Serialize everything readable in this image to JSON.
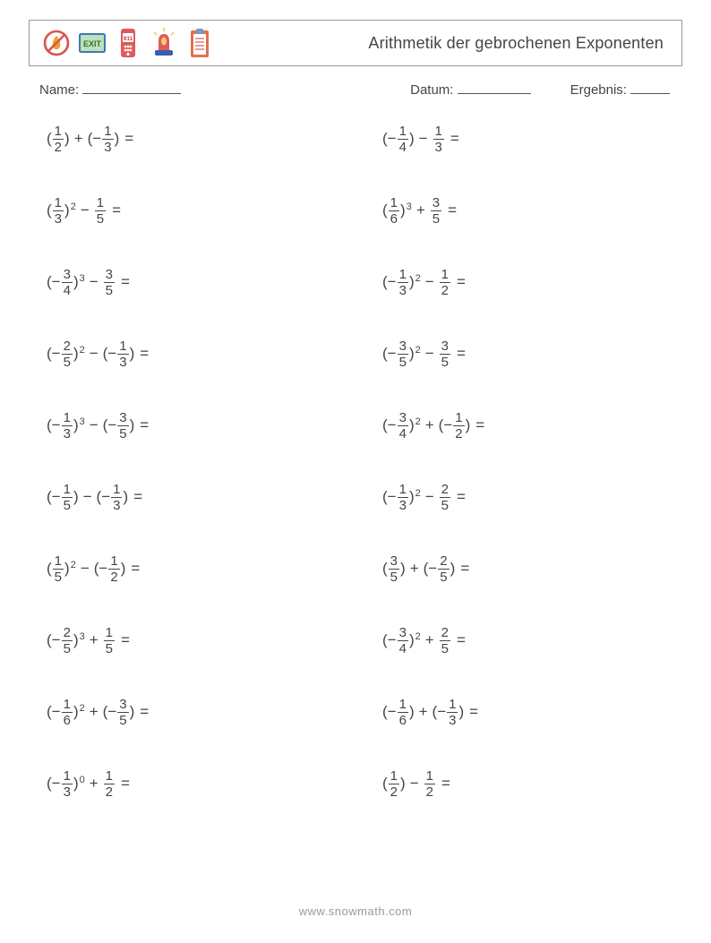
{
  "header": {
    "title": "Arithmetik der gebrochenen Exponenten"
  },
  "info": {
    "name_label": "Name:",
    "date_label": "Datum:",
    "result_label": "Ergebnis:",
    "name_line_w": 110,
    "date_line_w": 82,
    "result_line_w": 44
  },
  "icons": [
    {
      "kind": "no-flame-icon",
      "colors": {
        "ring": "#d9534f",
        "slash": "#d9534f",
        "flame": "#f0a030"
      }
    },
    {
      "kind": "exit-sign-icon",
      "colors": {
        "frame": "#3a7ab8",
        "bg": "#bfe0b8",
        "text": "#2a7a2a"
      }
    },
    {
      "kind": "phone-911-icon",
      "colors": {
        "body": "#e05a5a",
        "screen": "#ffffff",
        "text": "#d04040"
      }
    },
    {
      "kind": "siren-icon",
      "colors": {
        "dome": "#e05a5a",
        "base": "#3760b0",
        "light": "#f8d070"
      }
    },
    {
      "kind": "clipboard-icon",
      "colors": {
        "board": "#e07050",
        "paper": "#ffffff",
        "clip": "#7796c9"
      }
    }
  ],
  "problems": {
    "left": [
      {
        "a": {
          "s": "",
          "n": "1",
          "d": "2",
          "e": ""
        },
        "op": "+",
        "b": {
          "s": "−",
          "n": "1",
          "d": "3",
          "paren": true
        }
      },
      {
        "a": {
          "s": "",
          "n": "1",
          "d": "3",
          "e": "2"
        },
        "op": "−",
        "b": {
          "s": "",
          "n": "1",
          "d": "5",
          "paren": false
        }
      },
      {
        "a": {
          "s": "−",
          "n": "3",
          "d": "4",
          "e": "3"
        },
        "op": "−",
        "b": {
          "s": "",
          "n": "3",
          "d": "5",
          "paren": false
        }
      },
      {
        "a": {
          "s": "−",
          "n": "2",
          "d": "5",
          "e": "2"
        },
        "op": "−",
        "b": {
          "s": "−",
          "n": "1",
          "d": "3",
          "paren": true
        }
      },
      {
        "a": {
          "s": "−",
          "n": "1",
          "d": "3",
          "e": "3"
        },
        "op": "−",
        "b": {
          "s": "−",
          "n": "3",
          "d": "5",
          "paren": true
        }
      },
      {
        "a": {
          "s": "−",
          "n": "1",
          "d": "5",
          "e": ""
        },
        "op": "−",
        "b": {
          "s": "−",
          "n": "1",
          "d": "3",
          "paren": true
        }
      },
      {
        "a": {
          "s": "",
          "n": "1",
          "d": "5",
          "e": "2"
        },
        "op": "−",
        "b": {
          "s": "−",
          "n": "1",
          "d": "2",
          "paren": true
        }
      },
      {
        "a": {
          "s": "−",
          "n": "2",
          "d": "5",
          "e": "3"
        },
        "op": "+",
        "b": {
          "s": "",
          "n": "1",
          "d": "5",
          "paren": false
        }
      },
      {
        "a": {
          "s": "−",
          "n": "1",
          "d": "6",
          "e": "2"
        },
        "op": "+",
        "b": {
          "s": "−",
          "n": "3",
          "d": "5",
          "paren": true
        }
      },
      {
        "a": {
          "s": "−",
          "n": "1",
          "d": "3",
          "e": "0"
        },
        "op": "+",
        "b": {
          "s": "",
          "n": "1",
          "d": "2",
          "paren": false
        }
      }
    ],
    "right": [
      {
        "a": {
          "s": "−",
          "n": "1",
          "d": "4",
          "e": ""
        },
        "op": "−",
        "b": {
          "s": "",
          "n": "1",
          "d": "3",
          "paren": false
        }
      },
      {
        "a": {
          "s": "",
          "n": "1",
          "d": "6",
          "e": "3"
        },
        "op": "+",
        "b": {
          "s": "",
          "n": "3",
          "d": "5",
          "paren": false
        }
      },
      {
        "a": {
          "s": "−",
          "n": "1",
          "d": "3",
          "e": "2"
        },
        "op": "−",
        "b": {
          "s": "",
          "n": "1",
          "d": "2",
          "paren": false
        }
      },
      {
        "a": {
          "s": "−",
          "n": "3",
          "d": "5",
          "e": "2"
        },
        "op": "−",
        "b": {
          "s": "",
          "n": "3",
          "d": "5",
          "paren": false
        }
      },
      {
        "a": {
          "s": "−",
          "n": "3",
          "d": "4",
          "e": "2"
        },
        "op": "+",
        "b": {
          "s": "−",
          "n": "1",
          "d": "2",
          "paren": true
        }
      },
      {
        "a": {
          "s": "−",
          "n": "1",
          "d": "3",
          "e": "2"
        },
        "op": "−",
        "b": {
          "s": "",
          "n": "2",
          "d": "5",
          "paren": false
        }
      },
      {
        "a": {
          "s": "",
          "n": "3",
          "d": "5",
          "e": ""
        },
        "op": "+",
        "b": {
          "s": "−",
          "n": "2",
          "d": "5",
          "paren": true
        }
      },
      {
        "a": {
          "s": "−",
          "n": "3",
          "d": "4",
          "e": "2"
        },
        "op": "+",
        "b": {
          "s": "",
          "n": "2",
          "d": "5",
          "paren": false
        }
      },
      {
        "a": {
          "s": "−",
          "n": "1",
          "d": "6",
          "e": ""
        },
        "op": "+",
        "b": {
          "s": "−",
          "n": "1",
          "d": "3",
          "paren": true
        }
      },
      {
        "a": {
          "s": "",
          "n": "1",
          "d": "2",
          "e": ""
        },
        "op": "−",
        "b": {
          "s": "",
          "n": "1",
          "d": "2",
          "paren": false
        }
      }
    ]
  },
  "footer": "www.snowmath.com"
}
